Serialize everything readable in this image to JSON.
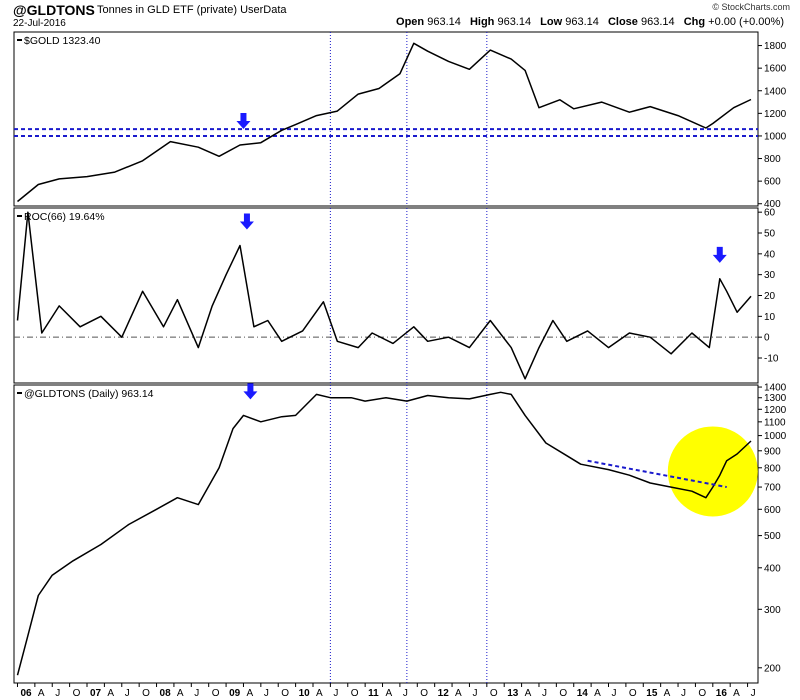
{
  "header": {
    "symbol": "@GLDTONS",
    "description": "Tonnes in GLD ETF (private)",
    "source": "UserData",
    "date": "22-Jul-2016",
    "brand": "© StockCharts.com",
    "ohlc": {
      "open_label": "Open",
      "open": "963.14",
      "high_label": "High",
      "high": "963.14",
      "low_label": "Low",
      "low": "963.14",
      "close_label": "Close",
      "close": "963.14",
      "chg_label": "Chg",
      "chg": "+0.00 (+0.00%)"
    }
  },
  "colors": {
    "line": "#000000",
    "marker": "#1a1aff",
    "dashed": "#1a1acc",
    "highlight": "#ffff00"
  },
  "chart_data": [
    {
      "type": "line",
      "title": "$GOLD 1323.40",
      "yticks": [
        400,
        600,
        800,
        1000,
        1200,
        1400,
        1600,
        1800
      ],
      "ylim": [
        380,
        1920
      ],
      "horizontal_lines": [
        1000,
        1060
      ],
      "series": [
        {
          "x": [
            2006.0,
            2006.3,
            2006.6,
            2007.0,
            2007.4,
            2007.8,
            2008.2,
            2008.6,
            2008.9,
            2009.2,
            2009.5,
            2009.8,
            2010.0,
            2010.3,
            2010.6,
            2010.9,
            2011.2,
            2011.5,
            2011.7,
            2011.9,
            2012.2,
            2012.5,
            2012.8,
            2013.1,
            2013.3,
            2013.5,
            2013.8,
            2014.0,
            2014.4,
            2014.8,
            2015.1,
            2015.5,
            2015.9,
            2016.0,
            2016.3,
            2016.55
          ],
          "values": [
            420,
            570,
            620,
            640,
            680,
            780,
            950,
            900,
            820,
            920,
            940,
            1050,
            1100,
            1180,
            1220,
            1370,
            1420,
            1550,
            1820,
            1750,
            1660,
            1590,
            1760,
            1680,
            1580,
            1250,
            1320,
            1240,
            1300,
            1210,
            1260,
            1180,
            1070,
            1110,
            1250,
            1323
          ]
        }
      ],
      "annotations": [
        {
          "type": "arrow",
          "x": 2009.25
        }
      ]
    },
    {
      "type": "line",
      "title": "ROC(66) 19.64%",
      "yticks": [
        -10,
        0,
        10,
        20,
        30,
        40,
        50,
        60
      ],
      "ylim": [
        -22,
        62
      ],
      "zero_line": 0,
      "series": [
        {
          "x": [
            2006.0,
            2006.15,
            2006.35,
            2006.6,
            2006.9,
            2007.2,
            2007.5,
            2007.8,
            2008.1,
            2008.3,
            2008.6,
            2008.8,
            2009.0,
            2009.2,
            2009.4,
            2009.6,
            2009.8,
            2010.1,
            2010.4,
            2010.6,
            2010.9,
            2011.1,
            2011.4,
            2011.7,
            2011.9,
            2012.2,
            2012.5,
            2012.8,
            2013.1,
            2013.3,
            2013.5,
            2013.7,
            2013.9,
            2014.2,
            2014.5,
            2014.8,
            2015.1,
            2015.4,
            2015.7,
            2015.95,
            2016.1,
            2016.2,
            2016.35,
            2016.55
          ],
          "values": [
            8,
            60,
            2,
            15,
            5,
            10,
            0,
            22,
            5,
            18,
            -5,
            15,
            30,
            44,
            5,
            8,
            -2,
            3,
            17,
            -2,
            -5,
            2,
            -3,
            5,
            -2,
            0,
            -5,
            8,
            -5,
            -20,
            -5,
            8,
            -2,
            3,
            -5,
            2,
            0,
            -8,
            2,
            -5,
            28,
            22,
            12,
            19.64
          ]
        }
      ],
      "annotations": [
        {
          "type": "arrow",
          "x": 2009.3
        },
        {
          "type": "arrow",
          "x": 2016.1
        }
      ]
    },
    {
      "type": "line",
      "title": "@GLDTONS (Daily) 963.14",
      "yscale": "log",
      "yticks": [
        200,
        300,
        400,
        500,
        600,
        700,
        800,
        900,
        1000,
        1100,
        1200,
        1300,
        1400
      ],
      "ylim": [
        180,
        1420
      ],
      "series": [
        {
          "x": [
            2006.0,
            2006.15,
            2006.3,
            2006.5,
            2006.8,
            2007.2,
            2007.6,
            2008.0,
            2008.3,
            2008.6,
            2008.9,
            2009.1,
            2009.25,
            2009.5,
            2009.8,
            2010.0,
            2010.3,
            2010.5,
            2010.8,
            2011.0,
            2011.3,
            2011.6,
            2011.9,
            2012.2,
            2012.5,
            2012.8,
            2012.95,
            2013.1,
            2013.3,
            2013.6,
            2013.9,
            2014.1,
            2014.5,
            2014.8,
            2015.1,
            2015.4,
            2015.7,
            2015.9,
            2016.0,
            2016.1,
            2016.2,
            2016.35,
            2016.55
          ],
          "values": [
            190,
            250,
            330,
            380,
            420,
            470,
            540,
            600,
            650,
            620,
            800,
            1050,
            1150,
            1100,
            1140,
            1150,
            1330,
            1300,
            1300,
            1270,
            1300,
            1270,
            1320,
            1300,
            1290,
            1330,
            1350,
            1330,
            1150,
            950,
            870,
            820,
            790,
            760,
            720,
            700,
            680,
            650,
            700,
            760,
            840,
            880,
            963.14
          ]
        }
      ],
      "trendline": {
        "x": [
          2014.2,
          2016.2
        ],
        "values": [
          840,
          700
        ]
      },
      "highlight": {
        "x": 2016.0,
        "value": 780
      },
      "annotations": [
        {
          "type": "arrow",
          "x": 2009.35
        }
      ]
    }
  ],
  "xaxis": {
    "ticks": [
      {
        "x": 2006.0,
        "label": "06",
        "major": true
      },
      {
        "x": 2006.25,
        "label": "A"
      },
      {
        "x": 2006.5,
        "label": "J"
      },
      {
        "x": 2006.75,
        "label": "O"
      },
      {
        "x": 2007.0,
        "label": "07",
        "major": true
      },
      {
        "x": 2007.25,
        "label": "A"
      },
      {
        "x": 2007.5,
        "label": "J"
      },
      {
        "x": 2007.75,
        "label": "O"
      },
      {
        "x": 2008.0,
        "label": "08",
        "major": true
      },
      {
        "x": 2008.25,
        "label": "A"
      },
      {
        "x": 2008.5,
        "label": "J"
      },
      {
        "x": 2008.75,
        "label": "O"
      },
      {
        "x": 2009.0,
        "label": "09",
        "major": true
      },
      {
        "x": 2009.25,
        "label": "A"
      },
      {
        "x": 2009.5,
        "label": "J"
      },
      {
        "x": 2009.75,
        "label": "O"
      },
      {
        "x": 2010.0,
        "label": "10",
        "major": true
      },
      {
        "x": 2010.25,
        "label": "A"
      },
      {
        "x": 2010.5,
        "label": "J"
      },
      {
        "x": 2010.75,
        "label": "O"
      },
      {
        "x": 2011.0,
        "label": "11",
        "major": true
      },
      {
        "x": 2011.25,
        "label": "A"
      },
      {
        "x": 2011.5,
        "label": "J"
      },
      {
        "x": 2011.75,
        "label": "O"
      },
      {
        "x": 2012.0,
        "label": "12",
        "major": true
      },
      {
        "x": 2012.25,
        "label": "A"
      },
      {
        "x": 2012.5,
        "label": "J"
      },
      {
        "x": 2012.75,
        "label": "O"
      },
      {
        "x": 2013.0,
        "label": "13",
        "major": true
      },
      {
        "x": 2013.25,
        "label": "A"
      },
      {
        "x": 2013.5,
        "label": "J"
      },
      {
        "x": 2013.75,
        "label": "O"
      },
      {
        "x": 2014.0,
        "label": "14",
        "major": true
      },
      {
        "x": 2014.25,
        "label": "A"
      },
      {
        "x": 2014.5,
        "label": "J"
      },
      {
        "x": 2014.75,
        "label": "O"
      },
      {
        "x": 2015.0,
        "label": "15",
        "major": true
      },
      {
        "x": 2015.25,
        "label": "A"
      },
      {
        "x": 2015.5,
        "label": "J"
      },
      {
        "x": 2015.75,
        "label": "O"
      },
      {
        "x": 2016.0,
        "label": "16",
        "major": true
      },
      {
        "x": 2016.25,
        "label": "A"
      },
      {
        "x": 2016.5,
        "label": "J"
      }
    ],
    "xlim": [
      2005.95,
      2016.65
    ],
    "vertical_lines": [
      2010.5,
      2011.6,
      2012.75
    ]
  }
}
